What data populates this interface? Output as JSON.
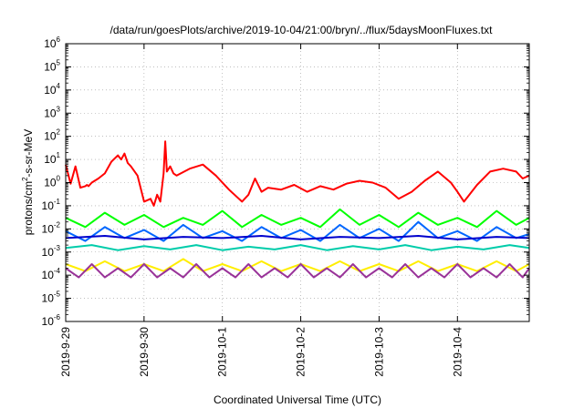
{
  "chart_data": {
    "type": "line",
    "title": "/data/run/goesPlots/archive/2019-10-04/21:00/bryn/../flux/5daysMoonFluxes.txt",
    "xlabel": "Coordinated Universal Time (UTC)",
    "ylabel": "protons/cm2-s-sr-MeV",
    "ylabel_parts": {
      "before": "protons/cm",
      "sup": "2",
      "after": "-s-sr-MeV"
    },
    "y_scale": "log",
    "ylim": [
      1e-06,
      1000000.0
    ],
    "y_tick_exponents": [
      -6,
      -5,
      -4,
      -3,
      -2,
      -1,
      0,
      1,
      2,
      3,
      4,
      5,
      6
    ],
    "xlim": [
      "2019-09-29T00:00",
      "2019-10-04T22:00"
    ],
    "x_ticks": [
      "2019-9-29",
      "2019-9-30",
      "2019-10-1",
      "2019-10-2",
      "2019-10-3",
      "2019-10-4"
    ],
    "grid": true,
    "legend": "none",
    "series": [
      {
        "color": "#ff0000",
        "x": [
          "2019-09-29T00:00",
          "2019-09-29T01:30",
          "2019-09-29T03:00",
          "2019-09-29T04:30",
          "2019-09-29T06:00",
          "2019-09-29T06:30",
          "2019-09-29T07:00",
          "2019-09-29T08:00",
          "2019-09-29T10:00",
          "2019-09-29T12:00",
          "2019-09-29T14:00",
          "2019-09-29T16:00",
          "2019-09-29T17:00",
          "2019-09-29T18:00",
          "2019-09-29T19:00",
          "2019-09-29T20:00",
          "2019-09-29T22:00",
          "2019-09-30T00:00",
          "2019-09-30T02:00",
          "2019-09-30T03:00",
          "2019-09-30T04:00",
          "2019-09-30T05:00",
          "2019-09-30T06:00",
          "2019-09-30T06:30",
          "2019-09-30T07:00",
          "2019-09-30T08:00",
          "2019-09-30T09:00",
          "2019-09-30T10:00",
          "2019-09-30T14:00",
          "2019-09-30T18:00",
          "2019-09-30T22:00",
          "2019-10-01T02:00",
          "2019-10-01T06:00",
          "2019-10-01T08:00",
          "2019-10-01T10:00",
          "2019-10-01T12:00",
          "2019-10-01T14:00",
          "2019-10-01T18:00",
          "2019-10-01T22:00",
          "2019-10-02T02:00",
          "2019-10-02T06:00",
          "2019-10-02T10:00",
          "2019-10-02T14:00",
          "2019-10-02T18:00",
          "2019-10-02T22:00",
          "2019-10-03T02:00",
          "2019-10-03T06:00",
          "2019-10-03T10:00",
          "2019-10-03T14:00",
          "2019-10-03T18:00",
          "2019-10-03T22:00",
          "2019-10-04T00:00",
          "2019-10-04T02:00",
          "2019-10-04T06:00",
          "2019-10-04T10:00",
          "2019-10-04T14:00",
          "2019-10-04T18:00",
          "2019-10-04T20:00",
          "2019-10-04T22:00"
        ],
        "values": [
          6,
          0.9,
          5,
          0.6,
          0.7,
          0.8,
          0.7,
          1.0,
          1.5,
          2.5,
          8,
          15,
          10,
          18,
          7,
          5,
          2,
          0.15,
          0.2,
          0.1,
          0.3,
          0.15,
          2.5,
          60,
          3,
          5,
          2.5,
          2,
          4,
          6,
          2,
          0.5,
          0.15,
          0.3,
          1.5,
          0.4,
          0.6,
          0.5,
          0.8,
          0.4,
          0.7,
          0.5,
          0.9,
          1.2,
          1.0,
          0.6,
          0.2,
          0.4,
          1.2,
          3,
          1.0,
          0.4,
          0.15,
          0.8,
          3,
          4,
          3,
          1.5,
          2
        ]
      },
      {
        "color": "#00ff00",
        "x": [
          "2019-09-29T00:00",
          "2019-09-29T06:00",
          "2019-09-29T12:00",
          "2019-09-29T18:00",
          "2019-09-30T00:00",
          "2019-09-30T06:00",
          "2019-09-30T12:00",
          "2019-09-30T18:00",
          "2019-10-01T00:00",
          "2019-10-01T06:00",
          "2019-10-01T12:00",
          "2019-10-01T18:00",
          "2019-10-02T00:00",
          "2019-10-02T06:00",
          "2019-10-02T12:00",
          "2019-10-02T18:00",
          "2019-10-03T00:00",
          "2019-10-03T06:00",
          "2019-10-03T12:00",
          "2019-10-03T18:00",
          "2019-10-04T00:00",
          "2019-10-04T06:00",
          "2019-10-04T12:00",
          "2019-10-04T18:00",
          "2019-10-04T22:00"
        ],
        "values": [
          0.03,
          0.012,
          0.05,
          0.015,
          0.04,
          0.012,
          0.03,
          0.015,
          0.06,
          0.012,
          0.04,
          0.015,
          0.03,
          0.012,
          0.07,
          0.015,
          0.04,
          0.012,
          0.05,
          0.015,
          0.03,
          0.012,
          0.06,
          0.015,
          0.03
        ]
      },
      {
        "color": "#0066ff",
        "x": [
          "2019-09-29T00:00",
          "2019-09-29T06:00",
          "2019-09-29T12:00",
          "2019-09-29T18:00",
          "2019-09-30T00:00",
          "2019-09-30T06:00",
          "2019-09-30T12:00",
          "2019-09-30T18:00",
          "2019-10-01T00:00",
          "2019-10-01T06:00",
          "2019-10-01T12:00",
          "2019-10-01T18:00",
          "2019-10-02T00:00",
          "2019-10-02T06:00",
          "2019-10-02T12:00",
          "2019-10-02T18:00",
          "2019-10-03T00:00",
          "2019-10-03T06:00",
          "2019-10-03T12:00",
          "2019-10-03T18:00",
          "2019-10-04T00:00",
          "2019-10-04T06:00",
          "2019-10-04T12:00",
          "2019-10-04T18:00",
          "2019-10-04T22:00"
        ],
        "values": [
          0.008,
          0.003,
          0.012,
          0.004,
          0.009,
          0.003,
          0.015,
          0.004,
          0.008,
          0.003,
          0.012,
          0.004,
          0.009,
          0.003,
          0.015,
          0.004,
          0.01,
          0.003,
          0.02,
          0.004,
          0.008,
          0.003,
          0.012,
          0.004,
          0.006
        ]
      },
      {
        "color": "#0000cc",
        "x": [
          "2019-09-29T00:00",
          "2019-09-29T12:00",
          "2019-09-30T00:00",
          "2019-09-30T12:00",
          "2019-10-01T00:00",
          "2019-10-01T12:00",
          "2019-10-02T00:00",
          "2019-10-02T12:00",
          "2019-10-03T00:00",
          "2019-10-03T12:00",
          "2019-10-04T00:00",
          "2019-10-04T12:00",
          "2019-10-04T22:00"
        ],
        "values": [
          0.004,
          0.005,
          0.0035,
          0.0045,
          0.004,
          0.005,
          0.0035,
          0.0045,
          0.004,
          0.005,
          0.0035,
          0.0045,
          0.004
        ]
      },
      {
        "color": "#00ccaa",
        "x": [
          "2019-09-29T00:00",
          "2019-09-29T08:00",
          "2019-09-29T16:00",
          "2019-09-30T00:00",
          "2019-09-30T08:00",
          "2019-09-30T16:00",
          "2019-10-01T00:00",
          "2019-10-01T08:00",
          "2019-10-01T16:00",
          "2019-10-02T00:00",
          "2019-10-02T08:00",
          "2019-10-02T16:00",
          "2019-10-03T00:00",
          "2019-10-03T08:00",
          "2019-10-03T16:00",
          "2019-10-04T00:00",
          "2019-10-04T08:00",
          "2019-10-04T16:00",
          "2019-10-04T22:00"
        ],
        "values": [
          0.0015,
          0.002,
          0.0012,
          0.0018,
          0.0013,
          0.002,
          0.0012,
          0.0017,
          0.0013,
          0.002,
          0.0012,
          0.0018,
          0.0013,
          0.002,
          0.0012,
          0.0017,
          0.0013,
          0.002,
          0.0015
        ]
      },
      {
        "color": "#ffee00",
        "x": [
          "2019-09-29T00:00",
          "2019-09-29T06:00",
          "2019-09-29T12:00",
          "2019-09-29T18:00",
          "2019-09-30T00:00",
          "2019-09-30T06:00",
          "2019-09-30T12:00",
          "2019-09-30T18:00",
          "2019-10-01T00:00",
          "2019-10-01T06:00",
          "2019-10-01T12:00",
          "2019-10-01T18:00",
          "2019-10-02T00:00",
          "2019-10-02T06:00",
          "2019-10-02T12:00",
          "2019-10-02T18:00",
          "2019-10-03T00:00",
          "2019-10-03T06:00",
          "2019-10-03T12:00",
          "2019-10-03T18:00",
          "2019-10-04T00:00",
          "2019-10-04T06:00",
          "2019-10-04T12:00",
          "2019-10-04T18:00",
          "2019-10-04T22:00"
        ],
        "values": [
          0.0003,
          0.00015,
          0.0004,
          0.00015,
          0.0003,
          0.00015,
          0.0005,
          0.00015,
          0.0003,
          0.00015,
          0.0004,
          0.00015,
          0.0003,
          0.00015,
          0.0004,
          0.00015,
          0.0003,
          0.00015,
          0.0004,
          0.00015,
          0.0003,
          0.00015,
          0.0004,
          0.00015,
          0.0003
        ]
      },
      {
        "color": "#993399",
        "x": [
          "2019-09-29T00:00",
          "2019-09-29T04:00",
          "2019-09-29T08:00",
          "2019-09-29T12:00",
          "2019-09-29T16:00",
          "2019-09-29T20:00",
          "2019-09-30T00:00",
          "2019-09-30T04:00",
          "2019-09-30T08:00",
          "2019-09-30T12:00",
          "2019-09-30T16:00",
          "2019-09-30T20:00",
          "2019-10-01T00:00",
          "2019-10-01T04:00",
          "2019-10-01T08:00",
          "2019-10-01T12:00",
          "2019-10-01T16:00",
          "2019-10-01T20:00",
          "2019-10-02T00:00",
          "2019-10-02T04:00",
          "2019-10-02T08:00",
          "2019-10-02T12:00",
          "2019-10-02T16:00",
          "2019-10-02T20:00",
          "2019-10-03T00:00",
          "2019-10-03T04:00",
          "2019-10-03T08:00",
          "2019-10-03T12:00",
          "2019-10-03T16:00",
          "2019-10-03T20:00",
          "2019-10-04T00:00",
          "2019-10-04T04:00",
          "2019-10-04T08:00",
          "2019-10-04T12:00",
          "2019-10-04T16:00",
          "2019-10-04T20:00",
          "2019-10-04T22:00"
        ],
        "values": [
          0.0002,
          8e-05,
          0.0003,
          8e-05,
          0.0002,
          8e-05,
          0.0003,
          8e-05,
          0.0002,
          8e-05,
          0.0003,
          8e-05,
          0.0002,
          8e-05,
          0.0003,
          8e-05,
          0.0002,
          8e-05,
          0.0003,
          8e-05,
          0.0002,
          8e-05,
          0.0003,
          8e-05,
          0.0002,
          8e-05,
          0.0003,
          8e-05,
          0.0002,
          8e-05,
          0.0003,
          8e-05,
          0.0002,
          8e-05,
          0.0003,
          8e-05,
          0.0002
        ]
      }
    ]
  }
}
